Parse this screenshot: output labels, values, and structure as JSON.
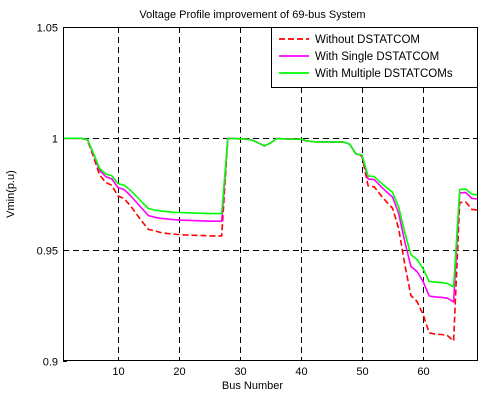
{
  "chart_data": {
    "type": "line",
    "title": "Voltage Profile improvement of 69-bus System",
    "xlabel": "Bus Number",
    "ylabel": "Vmin(p.u)",
    "xlim": [
      1,
      69
    ],
    "ylim": [
      0.9,
      1.05
    ],
    "xticks": [
      10,
      20,
      30,
      40,
      50,
      60
    ],
    "yticks": [
      0.9,
      0.95,
      1.0,
      1.05
    ],
    "ytick_labels": [
      "0.9",
      "0.95",
      "1",
      "1.05"
    ],
    "grid": true,
    "grid_style": "dashed",
    "legend_position": "top-right",
    "x": [
      1,
      2,
      3,
      4,
      5,
      6,
      7,
      8,
      9,
      10,
      11,
      12,
      13,
      14,
      15,
      16,
      17,
      18,
      19,
      20,
      21,
      22,
      23,
      24,
      25,
      26,
      27,
      28,
      29,
      30,
      31,
      32,
      33,
      34,
      35,
      36,
      37,
      38,
      39,
      40,
      41,
      42,
      43,
      44,
      45,
      46,
      47,
      48,
      49,
      50,
      51,
      52,
      53,
      54,
      55,
      56,
      57,
      58,
      59,
      60,
      61,
      62,
      63,
      64,
      65,
      66,
      67,
      68,
      69
    ],
    "series": [
      {
        "name": "Without DSTATCOM",
        "color": "#ff0000",
        "dash": "dashed",
        "values": [
          1.0,
          1.0,
          1.0,
          1.0,
          0.9993,
          0.9917,
          0.9836,
          0.9802,
          0.9789,
          0.9741,
          0.973,
          0.9699,
          0.9662,
          0.9625,
          0.9591,
          0.9585,
          0.9577,
          0.9573,
          0.957,
          0.9568,
          0.9566,
          0.9565,
          0.9564,
          0.9563,
          0.9562,
          0.9562,
          0.9562,
          0.9999,
          0.9999,
          0.9998,
          0.9997,
          0.9992,
          0.998,
          0.9966,
          0.9979,
          0.9999,
          0.9998,
          0.9997,
          0.9996,
          0.9996,
          0.9988,
          0.9985,
          0.9984,
          0.9984,
          0.9984,
          0.9984,
          0.9983,
          0.9973,
          0.993,
          0.9919,
          0.9787,
          0.9782,
          0.9747,
          0.9715,
          0.9686,
          0.9594,
          0.9434,
          0.9294,
          0.9267,
          0.9209,
          0.9126,
          0.9121,
          0.9119,
          0.9114,
          0.909,
          0.9712,
          0.9714,
          0.9681,
          0.9678
        ]
      },
      {
        "name": "With Single DSTATCOM",
        "color": "#ff00ff",
        "dash": "solid",
        "values": [
          1.0,
          1.0,
          1.0,
          1.0,
          0.9995,
          0.9929,
          0.9856,
          0.9828,
          0.9818,
          0.9779,
          0.977,
          0.9745,
          0.9714,
          0.9683,
          0.9653,
          0.9646,
          0.9641,
          0.9638,
          0.9635,
          0.9633,
          0.9632,
          0.9631,
          0.963,
          0.9629,
          0.9628,
          0.9628,
          0.9628,
          0.9999,
          0.9999,
          0.9998,
          0.9997,
          0.9992,
          0.998,
          0.9966,
          0.9979,
          0.9999,
          0.9998,
          0.9997,
          0.9996,
          0.9996,
          0.9988,
          0.9985,
          0.9984,
          0.9984,
          0.9984,
          0.9984,
          0.9983,
          0.9973,
          0.993,
          0.9923,
          0.9818,
          0.9814,
          0.9786,
          0.976,
          0.9736,
          0.9663,
          0.9536,
          0.9425,
          0.9402,
          0.9357,
          0.9292,
          0.9288,
          0.9286,
          0.9282,
          0.9265,
          0.9755,
          0.9757,
          0.973,
          0.9728
        ]
      },
      {
        "name": "With Multiple DSTATCOMs",
        "color": "#00ff00",
        "dash": "solid",
        "values": [
          1.0,
          1.0,
          1.0,
          1.0,
          0.9995,
          0.9933,
          0.9865,
          0.984,
          0.9832,
          0.9797,
          0.979,
          0.9768,
          0.974,
          0.9712,
          0.9685,
          0.9678,
          0.9674,
          0.9671,
          0.9668,
          0.9667,
          0.9666,
          0.9665,
          0.9664,
          0.9663,
          0.9662,
          0.9662,
          0.9662,
          0.9999,
          0.9999,
          0.9998,
          0.9997,
          0.9992,
          0.998,
          0.9966,
          0.9979,
          0.9999,
          0.9998,
          0.9997,
          0.9996,
          0.9996,
          0.9988,
          0.9985,
          0.9984,
          0.9984,
          0.9984,
          0.9984,
          0.9983,
          0.9973,
          0.993,
          0.9925,
          0.9831,
          0.9828,
          0.9802,
          0.9779,
          0.9757,
          0.9691,
          0.9577,
          0.9477,
          0.9456,
          0.9415,
          0.9357,
          0.9354,
          0.9352,
          0.9348,
          0.9333,
          0.977,
          0.9772,
          0.9749,
          0.9747
        ]
      }
    ]
  }
}
